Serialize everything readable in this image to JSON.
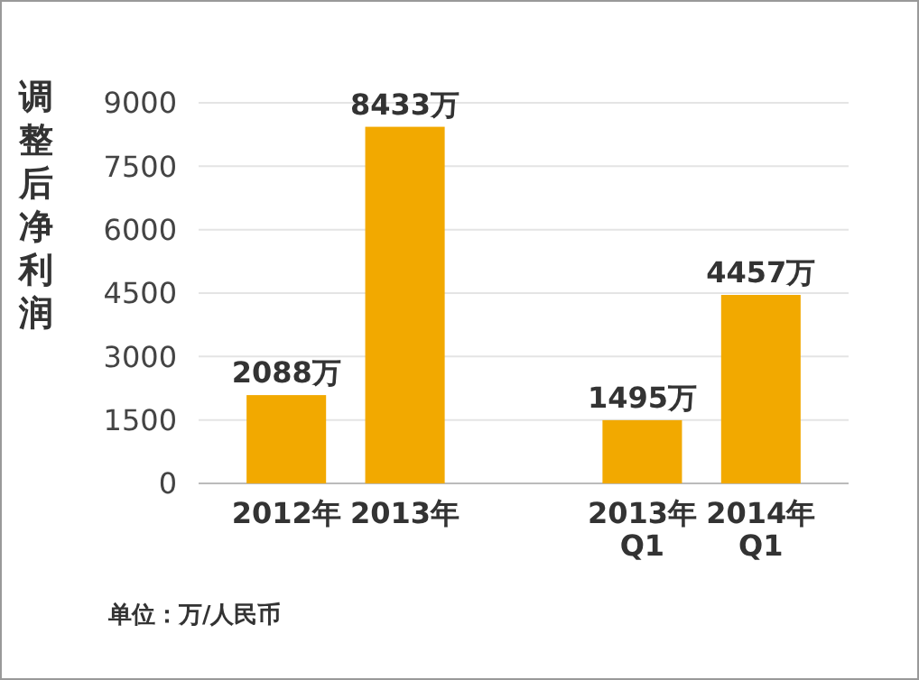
{
  "chart_data": {
    "type": "bar",
    "ylabel": "调整后净利润",
    "categories": [
      "2012年",
      "2013年",
      null,
      "2013年\nQ1",
      "2014年\nQ1"
    ],
    "values": [
      2088,
      8433,
      null,
      1495,
      4457
    ],
    "value_labels": [
      "2088万",
      "8433万",
      null,
      "1495万",
      "4457万"
    ],
    "color": "#f2a900",
    "ylim": [
      0,
      9000
    ],
    "yticks": [
      0,
      1500,
      3000,
      4500,
      6000,
      7500,
      9000
    ],
    "grid": "y",
    "annotations": [
      "单位：万/人民币"
    ]
  }
}
